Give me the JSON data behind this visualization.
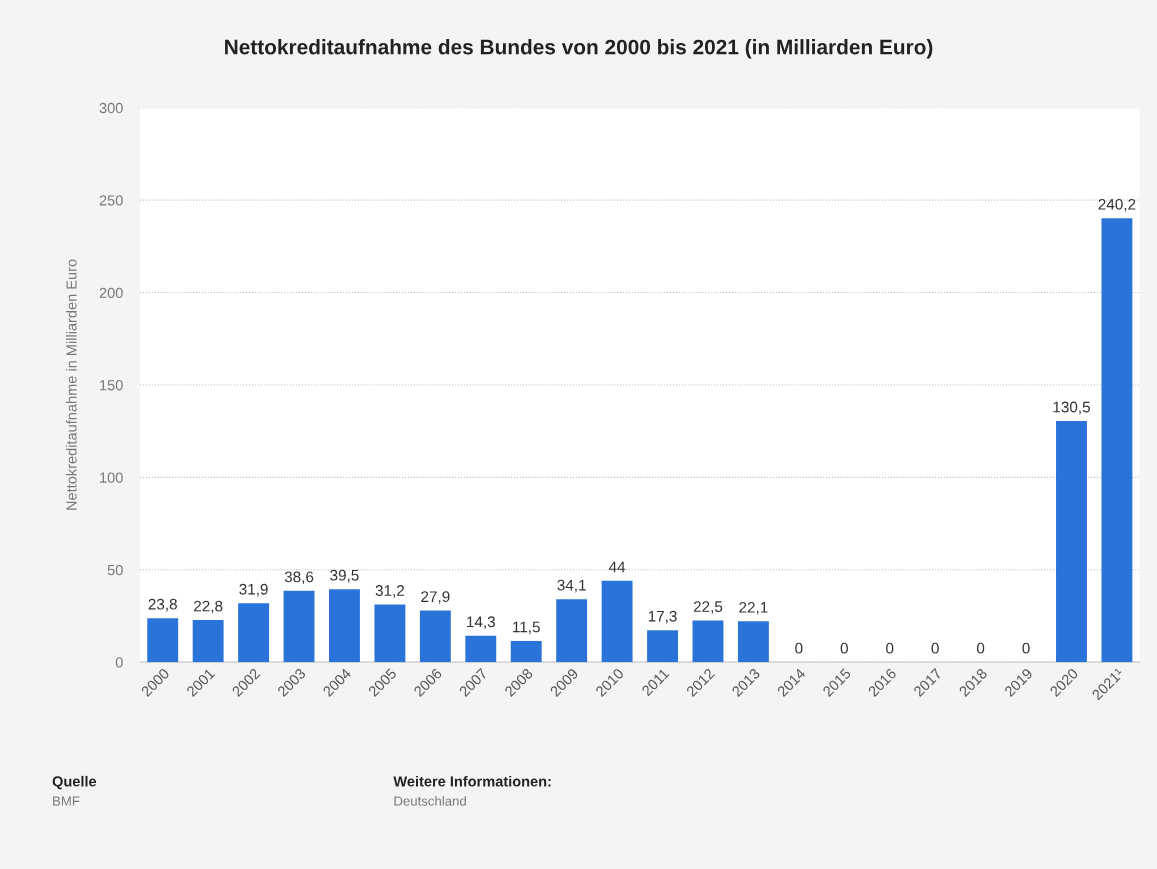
{
  "chart_data": {
    "type": "bar",
    "title": "Nettokreditaufnahme des Bundes von 2000 bis 2021 (in Milliarden Euro)",
    "ylabel": "Nettokreditaufnahme in Milliarden Euro",
    "categories": [
      "2000",
      "2001",
      "2002",
      "2003",
      "2004",
      "2005",
      "2006",
      "2007",
      "2008",
      "2009",
      "2010",
      "2011",
      "2012",
      "2013",
      "2014",
      "2015",
      "2016",
      "2017",
      "2018",
      "2019",
      "2020",
      "2021¹"
    ],
    "values": [
      23.8,
      22.8,
      31.9,
      38.6,
      39.5,
      31.2,
      27.9,
      14.3,
      11.5,
      34.1,
      44,
      17.3,
      22.5,
      22.1,
      0,
      0,
      0,
      0,
      0,
      0,
      130.5,
      240.2
    ],
    "value_labels": [
      "23,8",
      "22,8",
      "31,9",
      "38,6",
      "39,5",
      "31,2",
      "27,9",
      "14,3",
      "11,5",
      "34,1",
      "44",
      "17,3",
      "22,5",
      "22,1",
      "0",
      "0",
      "0",
      "0",
      "0",
      "0",
      "130,5",
      "240,2"
    ],
    "color": "#2a73d9",
    "ylim": [
      0,
      300
    ],
    "yticks": [
      0,
      50,
      100,
      150,
      200,
      250,
      300
    ],
    "grid": "y",
    "annotations": [
      "Quelle",
      "BMF",
      "Weitere Informationen:",
      "Deutschland"
    ]
  }
}
